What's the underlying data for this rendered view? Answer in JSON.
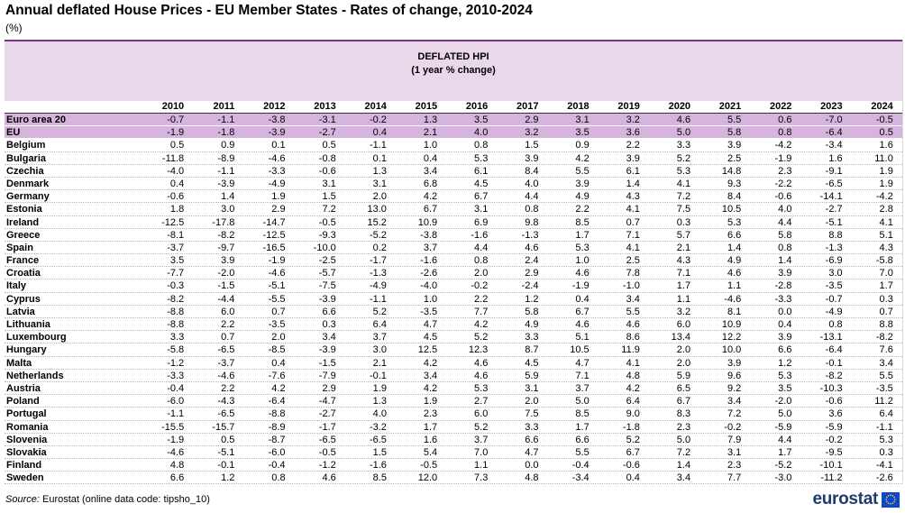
{
  "title": "Annual deflated House Prices - EU Member States - Rates of change, 2010-2024",
  "unit": "(%)",
  "header": {
    "line1": "DEFLATED HPI",
    "line2": "(1 year % change)"
  },
  "years": [
    "2010",
    "2011",
    "2012",
    "2013",
    "2014",
    "2015",
    "2016",
    "2017",
    "2018",
    "2019",
    "2020",
    "2021",
    "2022",
    "2023",
    "2024"
  ],
  "aggregates": [
    {
      "name": "Euro area 20",
      "values": [
        "-0.7",
        "-1.1",
        "-3.8",
        "-3.1",
        "-0.2",
        "1.3",
        "3.5",
        "2.9",
        "3.1",
        "3.2",
        "4.6",
        "5.5",
        "0.6",
        "-7.0",
        "-0.5"
      ]
    },
    {
      "name": "EU",
      "values": [
        "-1.9",
        "-1.8",
        "-3.9",
        "-2.7",
        "0.4",
        "2.1",
        "4.0",
        "3.2",
        "3.5",
        "3.6",
        "5.0",
        "5.8",
        "0.8",
        "-6.4",
        "0.5"
      ]
    }
  ],
  "countries": [
    {
      "name": "Belgium",
      "values": [
        "0.5",
        "0.9",
        "0.1",
        "0.5",
        "-1.1",
        "1.0",
        "0.8",
        "1.5",
        "0.9",
        "2.2",
        "3.3",
        "3.9",
        "-4.2",
        "-3.4",
        "1.6"
      ]
    },
    {
      "name": "Bulgaria",
      "values": [
        "-11.8",
        "-8.9",
        "-4.6",
        "-0.8",
        "0.1",
        "0.4",
        "5.3",
        "3.9",
        "4.2",
        "3.9",
        "5.2",
        "2.5",
        "-1.9",
        "1.6",
        "11.0"
      ]
    },
    {
      "name": "Czechia",
      "values": [
        "-4.0",
        "-1.1",
        "-3.3",
        "-0.6",
        "1.3",
        "3.4",
        "6.1",
        "8.4",
        "5.5",
        "6.1",
        "5.3",
        "14.8",
        "2.3",
        "-9.1",
        "1.9"
      ]
    },
    {
      "name": "Denmark",
      "values": [
        "0.4",
        "-3.9",
        "-4.9",
        "3.1",
        "3.1",
        "6.8",
        "4.5",
        "4.0",
        "3.9",
        "1.4",
        "4.1",
        "9.3",
        "-2.2",
        "-6.5",
        "1.9"
      ]
    },
    {
      "name": "Germany",
      "values": [
        "-0.6",
        "1.4",
        "1.9",
        "1.5",
        "2.0",
        "4.2",
        "6.7",
        "4.4",
        "4.9",
        "4.3",
        "7.2",
        "8.4",
        "-0.6",
        "-14.1",
        "-4.2"
      ]
    },
    {
      "name": "Estonia",
      "values": [
        "1.8",
        "3.0",
        "2.9",
        "7.2",
        "13.0",
        "6.7",
        "3.1",
        "0.8",
        "2.2",
        "4.1",
        "7.5",
        "10.5",
        "4.0",
        "-2.7",
        "2.8"
      ]
    },
    {
      "name": "Ireland",
      "values": [
        "-12.5",
        "-17.8",
        "-14.7",
        "-0.5",
        "15.2",
        "10.9",
        "6.9",
        "9.8",
        "8.5",
        "0.7",
        "0.3",
        "5.3",
        "4.4",
        "-5.1",
        "4.1"
      ]
    },
    {
      "name": "Greece",
      "values": [
        "-8.1",
        "-8.2",
        "-12.5",
        "-9.3",
        "-5.2",
        "-3.8",
        "-1.6",
        "-1.3",
        "1.7",
        "7.1",
        "5.7",
        "6.6",
        "5.8",
        "8.8",
        "5.1"
      ]
    },
    {
      "name": "Spain",
      "values": [
        "-3.7",
        "-9.7",
        "-16.5",
        "-10.0",
        "0.2",
        "3.7",
        "4.4",
        "4.6",
        "5.3",
        "4.1",
        "2.1",
        "1.4",
        "0.8",
        "-1.3",
        "4.3"
      ]
    },
    {
      "name": "France",
      "values": [
        "3.5",
        "3.9",
        "-1.9",
        "-2.5",
        "-1.7",
        "-1.6",
        "0.8",
        "2.4",
        "1.0",
        "2.5",
        "4.3",
        "4.9",
        "1.4",
        "-6.9",
        "-5.8"
      ]
    },
    {
      "name": "Croatia",
      "values": [
        "-7.7",
        "-2.0",
        "-4.6",
        "-5.7",
        "-1.3",
        "-2.6",
        "2.0",
        "2.9",
        "4.6",
        "7.8",
        "7.1",
        "4.6",
        "3.9",
        "3.0",
        "7.0"
      ]
    },
    {
      "name": "Italy",
      "values": [
        "-0.3",
        "-1.5",
        "-5.1",
        "-7.5",
        "-4.9",
        "-4.0",
        "-0.2",
        "-2.4",
        "-1.9",
        "-1.0",
        "1.7",
        "1.1",
        "-2.8",
        "-3.5",
        "1.7"
      ]
    },
    {
      "name": "Cyprus",
      "values": [
        "-8.2",
        "-4.4",
        "-5.5",
        "-3.9",
        "-1.1",
        "1.0",
        "2.2",
        "1.2",
        "0.4",
        "3.4",
        "1.1",
        "-4.6",
        "-3.3",
        "-0.7",
        "0.3"
      ]
    },
    {
      "name": "Latvia",
      "values": [
        "-8.8",
        "6.0",
        "0.7",
        "6.6",
        "5.2",
        "-3.5",
        "7.7",
        "5.8",
        "6.7",
        "5.5",
        "3.2",
        "8.1",
        "0.0",
        "-4.9",
        "0.7"
      ]
    },
    {
      "name": "Lithuania",
      "values": [
        "-8.8",
        "2.2",
        "-3.5",
        "0.3",
        "6.4",
        "4.7",
        "4.2",
        "4.9",
        "4.6",
        "4.6",
        "6.0",
        "10.9",
        "0.4",
        "0.8",
        "8.8"
      ]
    },
    {
      "name": "Luxembourg",
      "values": [
        "3.3",
        "0.7",
        "2.0",
        "3.4",
        "3.7",
        "4.5",
        "5.2",
        "3.3",
        "5.1",
        "8.6",
        "13.4",
        "12.2",
        "3.9",
        "-13.1",
        "-8.2"
      ]
    },
    {
      "name": "Hungary",
      "values": [
        "-5.8",
        "-6.5",
        "-8.5",
        "-3.9",
        "3.0",
        "12.5",
        "12.3",
        "8.7",
        "10.5",
        "11.9",
        "2.0",
        "10.0",
        "6.6",
        "-6.4",
        "7.6"
      ]
    },
    {
      "name": "Malta",
      "values": [
        "-1.2",
        "-3.7",
        "0.4",
        "-1.5",
        "2.1",
        "4.2",
        "4.6",
        "4.5",
        "4.7",
        "4.1",
        "2.0",
        "3.9",
        "1.2",
        "-0.1",
        "3.4"
      ]
    },
    {
      "name": "Netherlands",
      "values": [
        "-3.3",
        "-4.6",
        "-7.6",
        "-7.9",
        "-0.1",
        "3.4",
        "4.6",
        "5.9",
        "7.1",
        "4.8",
        "5.9",
        "9.6",
        "5.3",
        "-8.2",
        "5.5"
      ]
    },
    {
      "name": "Austria",
      "values": [
        "-0.4",
        "2.2",
        "4.2",
        "2.9",
        "1.9",
        "4.2",
        "5.3",
        "3.1",
        "3.7",
        "4.2",
        "6.5",
        "9.2",
        "3.5",
        "-10.3",
        "-3.5"
      ]
    },
    {
      "name": "Poland",
      "values": [
        "-6.0",
        "-4.3",
        "-6.4",
        "-4.7",
        "1.3",
        "1.9",
        "2.7",
        "2.0",
        "5.0",
        "6.4",
        "6.7",
        "3.4",
        "-2.0",
        "-0.6",
        "11.2"
      ]
    },
    {
      "name": "Portugal",
      "values": [
        "-1.1",
        "-6.5",
        "-8.8",
        "-2.7",
        "4.0",
        "2.3",
        "6.0",
        "7.5",
        "8.5",
        "9.0",
        "8.3",
        "7.2",
        "5.0",
        "3.6",
        "6.4"
      ]
    },
    {
      "name": "Romania",
      "values": [
        "-15.5",
        "-15.7",
        "-8.9",
        "-1.7",
        "-3.2",
        "1.7",
        "5.2",
        "3.3",
        "1.7",
        "-1.8",
        "2.3",
        "-0.2",
        "-5.9",
        "-5.9",
        "-1.1"
      ]
    },
    {
      "name": "Slovenia",
      "values": [
        "-1.9",
        "0.5",
        "-8.7",
        "-6.5",
        "-6.5",
        "1.6",
        "3.7",
        "6.6",
        "6.6",
        "5.2",
        "5.0",
        "7.9",
        "4.4",
        "-0.2",
        "5.3"
      ]
    },
    {
      "name": "Slovakia",
      "values": [
        "-4.6",
        "-5.1",
        "-6.0",
        "-0.5",
        "1.5",
        "5.4",
        "7.0",
        "4.7",
        "5.5",
        "6.7",
        "7.2",
        "3.1",
        "1.7",
        "-9.5",
        "0.3"
      ]
    },
    {
      "name": "Finland",
      "values": [
        "4.8",
        "-0.1",
        "-0.4",
        "-1.2",
        "-1.6",
        "-0.5",
        "1.1",
        "0.0",
        "-0.4",
        "-0.6",
        "1.4",
        "2.3",
        "-5.2",
        "-10.1",
        "-4.1"
      ]
    },
    {
      "name": "Sweden",
      "values": [
        "6.6",
        "1.2",
        "0.8",
        "4.6",
        "8.5",
        "12.0",
        "7.3",
        "4.8",
        "-3.4",
        "0.4",
        "3.4",
        "7.7",
        "-3.0",
        "-11.2",
        "-2.6"
      ]
    }
  ],
  "source": {
    "label": "Source:",
    "text": "Eurostat (online data code: tipsho_10)"
  },
  "logo": {
    "text": "eurostat",
    "flag_color": "#0e47cb",
    "star_color": "#ffdd00"
  },
  "colors": {
    "header_band": "#e8d8ea",
    "aggregate_row": "#d7b4de",
    "accent": "#7e2f87"
  }
}
